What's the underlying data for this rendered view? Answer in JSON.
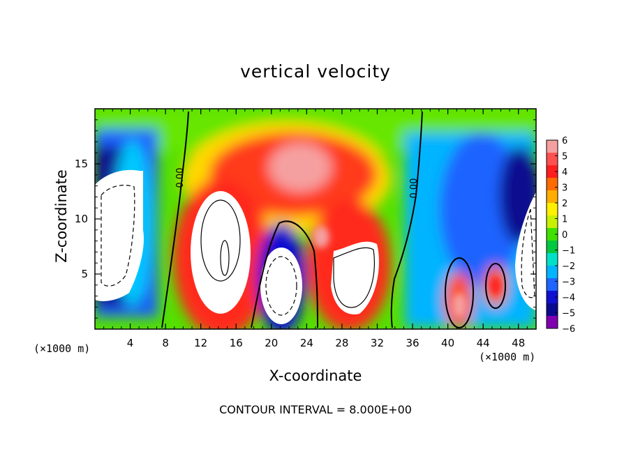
{
  "title": "vertical velocity",
  "footer": "CONTOUR INTERVAL = 8.000E+00",
  "x_unit_left": "(×1000 m)",
  "x_unit_right": "(×1000 m)",
  "chart_data": {
    "type": "heatmap",
    "title": "vertical velocity",
    "xlabel": "X-coordinate",
    "ylabel": "Z-coordinate",
    "x_unit": "(×1000 m)",
    "xlim": [
      0,
      50
    ],
    "ylim": [
      0,
      20
    ],
    "x_ticks": [
      4,
      8,
      12,
      16,
      20,
      24,
      28,
      32,
      36,
      40,
      44,
      48
    ],
    "y_ticks": [
      5,
      10,
      15
    ],
    "colorbar": {
      "ticks": [
        6,
        5,
        4,
        3,
        2,
        1,
        0,
        -1,
        -2,
        -3,
        -4,
        -5,
        -6
      ],
      "range": [
        -6,
        6
      ],
      "colors": [
        "#f5a0a0",
        "#ff5050",
        "#ff1e1e",
        "#ff6a00",
        "#ffae00",
        "#fff000",
        "#c8f000",
        "#40e000",
        "#00c840",
        "#00e0c8",
        "#00b4ff",
        "#1e64ff",
        "#1010d0",
        "#0a0a90",
        "#8000b0"
      ]
    },
    "contour_labels": [
      "0.00",
      "0.00"
    ],
    "contour_interval": "8.000E+00"
  }
}
